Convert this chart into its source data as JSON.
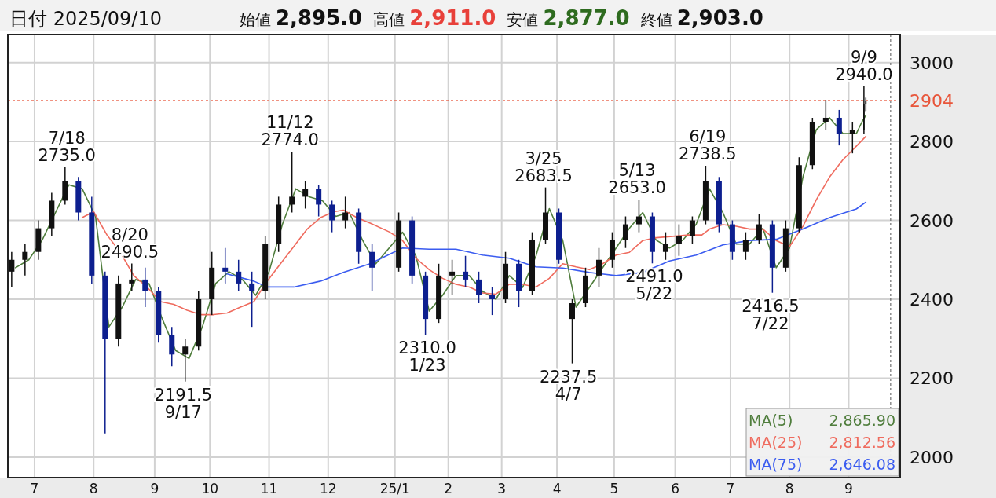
{
  "chart_data": {
    "type": "candlestick",
    "title": "日付 2025/09/10",
    "x": [
      "2024-06-19",
      "2024-06-26",
      "2024-07-03",
      "2024-07-10",
      "2024-07-17",
      "2024-07-24",
      "2024-07-31",
      "2024-08-07",
      "2024-08-14",
      "2024-08-21",
      "2024-08-28",
      "2024-09-04",
      "2024-09-11",
      "2024-09-18",
      "2024-09-25",
      "2024-10-02",
      "2024-10-09",
      "2024-10-16",
      "2024-10-23",
      "2024-10-30",
      "2024-11-06",
      "2024-11-13",
      "2024-11-20",
      "2024-11-27",
      "2024-12-04",
      "2024-12-11",
      "2024-12-18",
      "2024-12-25",
      "2025-01-08",
      "2025-01-15",
      "2025-01-22",
      "2025-01-29",
      "2025-02-05",
      "2025-02-12",
      "2025-02-19",
      "2025-02-26",
      "2025-03-05",
      "2025-03-12",
      "2025-03-19",
      "2025-03-26",
      "2025-04-02",
      "2025-04-09",
      "2025-04-16",
      "2025-04-23",
      "2025-04-30",
      "2025-05-07",
      "2025-05-14",
      "2025-05-21",
      "2025-05-28",
      "2025-06-04",
      "2025-06-11",
      "2025-06-18",
      "2025-06-25",
      "2025-07-02",
      "2025-07-09",
      "2025-07-16",
      "2025-07-23",
      "2025-07-30",
      "2025-08-06",
      "2025-08-13",
      "2025-08-20",
      "2025-08-27",
      "2025-09-03",
      "2025-09-09",
      "2025-09-10"
    ],
    "ohlc": [
      [
        2470,
        2520,
        2430,
        2500
      ],
      [
        2500,
        2540,
        2460,
        2520
      ],
      [
        2520,
        2600,
        2500,
        2580
      ],
      [
        2580,
        2670,
        2560,
        2650
      ],
      [
        2650,
        2735,
        2640,
        2700
      ],
      [
        2700,
        2710,
        2600,
        2620
      ],
      [
        2620,
        2660,
        2440,
        2460
      ],
      [
        2460,
        2470,
        2060,
        2300
      ],
      [
        2300,
        2460,
        2280,
        2440
      ],
      [
        2440,
        2490.5,
        2420,
        2450
      ],
      [
        2450,
        2480,
        2380,
        2420
      ],
      [
        2420,
        2430,
        2290,
        2310
      ],
      [
        2310,
        2330,
        2230,
        2260
      ],
      [
        2260,
        2300,
        2191.5,
        2280
      ],
      [
        2280,
        2420,
        2270,
        2400
      ],
      [
        2400,
        2520,
        2360,
        2480
      ],
      [
        2480,
        2530,
        2440,
        2470
      ],
      [
        2470,
        2500,
        2420,
        2440
      ],
      [
        2440,
        2470,
        2330,
        2420
      ],
      [
        2420,
        2560,
        2400,
        2540
      ],
      [
        2540,
        2660,
        2520,
        2640
      ],
      [
        2640,
        2774,
        2620,
        2660
      ],
      [
        2660,
        2700,
        2630,
        2680
      ],
      [
        2680,
        2690,
        2610,
        2640
      ],
      [
        2640,
        2650,
        2570,
        2600
      ],
      [
        2600,
        2660,
        2580,
        2620
      ],
      [
        2620,
        2630,
        2490,
        2520
      ],
      [
        2520,
        2540,
        2420,
        2480
      ],
      [
        2480,
        2620,
        2470,
        2600
      ],
      [
        2600,
        2610,
        2440,
        2460
      ],
      [
        2460,
        2470,
        2310,
        2350
      ],
      [
        2350,
        2490,
        2340,
        2460
      ],
      [
        2460,
        2500,
        2410,
        2470
      ],
      [
        2470,
        2510,
        2430,
        2450
      ],
      [
        2450,
        2470,
        2390,
        2410
      ],
      [
        2410,
        2430,
        2360,
        2400
      ],
      [
        2400,
        2520,
        2390,
        2490
      ],
      [
        2490,
        2500,
        2380,
        2420
      ],
      [
        2420,
        2570,
        2410,
        2550
      ],
      [
        2550,
        2683.5,
        2540,
        2620
      ],
      [
        2620,
        2630,
        2490,
        2500
      ],
      [
        2350,
        2400,
        2237.5,
        2390
      ],
      [
        2390,
        2480,
        2380,
        2460
      ],
      [
        2460,
        2530,
        2430,
        2500
      ],
      [
        2500,
        2570,
        2480,
        2550
      ],
      [
        2550,
        2610,
        2530,
        2590
      ],
      [
        2590,
        2653,
        2570,
        2610
      ],
      [
        2610,
        2620,
        2491,
        2520
      ],
      [
        2520,
        2570,
        2500,
        2540
      ],
      [
        2540,
        2590,
        2510,
        2560
      ],
      [
        2560,
        2610,
        2540,
        2600
      ],
      [
        2600,
        2738.5,
        2590,
        2700
      ],
      [
        2700,
        2710,
        2570,
        2590
      ],
      [
        2590,
        2600,
        2500,
        2520
      ],
      [
        2520,
        2570,
        2500,
        2550
      ],
      [
        2550,
        2615,
        2540,
        2590
      ],
      [
        2590,
        2600,
        2416.5,
        2480
      ],
      [
        2480,
        2600,
        2470,
        2580
      ],
      [
        2580,
        2760,
        2570,
        2740
      ],
      [
        2740,
        2860,
        2730,
        2850
      ],
      [
        2850,
        2905,
        2830,
        2860
      ],
      [
        2860,
        2880,
        2790,
        2820
      ],
      [
        2820,
        2850,
        2770,
        2830
      ],
      [
        2830,
        2940,
        2820,
        2895
      ],
      [
        2895,
        2911,
        2877,
        2903
      ]
    ],
    "series": [
      {
        "name": "MA(5)",
        "type": "line",
        "color": "#4f7d3c",
        "x": [
          "2024-06-21",
          "2024-06-28",
          "2024-07-05",
          "2024-07-12",
          "2024-07-19",
          "2024-07-26",
          "2024-08-02",
          "2024-08-09",
          "2024-08-16",
          "2024-08-23",
          "2024-08-30",
          "2024-09-06",
          "2024-09-13",
          "2024-09-20",
          "2024-09-27",
          "2024-10-04",
          "2024-10-11",
          "2024-10-18",
          "2024-10-25",
          "2024-11-01",
          "2024-11-08",
          "2024-11-15",
          "2024-11-22",
          "2024-11-29",
          "2024-12-06",
          "2024-12-13",
          "2024-12-20",
          "2024-12-27",
          "2025-01-10",
          "2025-01-17",
          "2025-01-24",
          "2025-01-31",
          "2025-02-07",
          "2025-02-14",
          "2025-02-21",
          "2025-02-28",
          "2025-03-07",
          "2025-03-14",
          "2025-03-21",
          "2025-03-28",
          "2025-04-04",
          "2025-04-11",
          "2025-04-18",
          "2025-04-25",
          "2025-05-02",
          "2025-05-09",
          "2025-05-16",
          "2025-05-23",
          "2025-05-30",
          "2025-06-06",
          "2025-06-13",
          "2025-06-20",
          "2025-06-27",
          "2025-07-04",
          "2025-07-11",
          "2025-07-18",
          "2025-07-25",
          "2025-08-01",
          "2025-08-08",
          "2025-08-15",
          "2025-08-22",
          "2025-08-29",
          "2025-09-05",
          "2025-09-08",
          "2025-09-10"
        ],
        "values": [
          2480,
          2500,
          2550,
          2620,
          2690,
          2680,
          2610,
          2330,
          2380,
          2450,
          2440,
          2350,
          2270,
          2250,
          2330,
          2440,
          2470,
          2450,
          2410,
          2470,
          2590,
          2680,
          2660,
          2650,
          2610,
          2620,
          2550,
          2490,
          2570,
          2510,
          2370,
          2410,
          2460,
          2460,
          2420,
          2400,
          2460,
          2430,
          2510,
          2630,
          2550,
          2380,
          2430,
          2480,
          2530,
          2580,
          2620,
          2550,
          2530,
          2550,
          2590,
          2680,
          2620,
          2540,
          2540,
          2580,
          2480,
          2530,
          2710,
          2830,
          2860,
          2820,
          2820,
          2850,
          2866
        ]
      },
      {
        "name": "MA(25)",
        "type": "line",
        "color": "#ef6b5e",
        "x": [
          "2024-07-26",
          "2024-08-01",
          "2024-08-08",
          "2024-08-15",
          "2024-08-22",
          "2024-08-29",
          "2024-09-05",
          "2024-09-12",
          "2024-09-19",
          "2024-09-26",
          "2024-10-03",
          "2024-10-10",
          "2024-10-17",
          "2024-10-24",
          "2024-10-31",
          "2024-11-07",
          "2024-11-14",
          "2024-11-21",
          "2024-11-28",
          "2024-12-05",
          "2024-12-10",
          "2024-12-17",
          "2024-12-24",
          "2025-01-03",
          "2025-01-10",
          "2025-01-17",
          "2025-01-24",
          "2025-01-31",
          "2025-02-07",
          "2025-02-14",
          "2025-02-21",
          "2025-02-28",
          "2025-03-07",
          "2025-03-14",
          "2025-03-21",
          "2025-03-28",
          "2025-04-04",
          "2025-04-11",
          "2025-04-18",
          "2025-04-25",
          "2025-05-02",
          "2025-05-09",
          "2025-05-16",
          "2025-05-23",
          "2025-06-02",
          "2025-06-09",
          "2025-06-16",
          "2025-06-20",
          "2025-06-27",
          "2025-07-04",
          "2025-07-11",
          "2025-07-18",
          "2025-07-25",
          "2025-08-01",
          "2025-08-08",
          "2025-08-15",
          "2025-08-22",
          "2025-08-29",
          "2025-09-05",
          "2025-09-10"
        ],
        "values": [
          2607,
          2622,
          2563,
          2519,
          2460,
          2431,
          2394,
          2387,
          2372,
          2361,
          2361,
          2365,
          2380,
          2394,
          2446,
          2490,
          2534,
          2578,
          2607,
          2622,
          2626,
          2607,
          2593,
          2571,
          2549,
          2504,
          2475,
          2453,
          2438,
          2431,
          2416,
          2413,
          2438,
          2438,
          2431,
          2453,
          2490,
          2482,
          2475,
          2490,
          2512,
          2519,
          2549,
          2556,
          2560,
          2563,
          2563,
          2578,
          2589,
          2585,
          2578,
          2578,
          2549,
          2534,
          2585,
          2652,
          2710,
          2754,
          2788,
          2813
        ]
      },
      {
        "name": "MA(75)",
        "type": "line",
        "color": "#3b5cf0",
        "x": [
          "2024-10-10",
          "2024-10-24",
          "2024-10-31",
          "2024-11-14",
          "2024-11-28",
          "2024-12-10",
          "2024-12-24",
          "2025-01-10",
          "2025-01-24",
          "2025-02-07",
          "2025-02-21",
          "2025-03-07",
          "2025-03-21",
          "2025-04-04",
          "2025-04-18",
          "2025-05-02",
          "2025-05-16",
          "2025-05-30",
          "2025-06-13",
          "2025-06-27",
          "2025-07-11",
          "2025-07-25",
          "2025-08-08",
          "2025-08-22",
          "2025-09-05",
          "2025-09-10"
        ],
        "values": [
          2464,
          2446,
          2431,
          2431,
          2446,
          2468,
          2490,
          2530,
          2527,
          2527,
          2512,
          2504,
          2482,
          2479,
          2468,
          2460,
          2468,
          2497,
          2512,
          2538,
          2549,
          2552,
          2578,
          2607,
          2629,
          2646
        ]
      }
    ],
    "xlim": [
      "2024-06-17",
      "2025-09-28"
    ],
    "xticks": [
      {
        "value": "2024-07-01",
        "label": "7"
      },
      {
        "value": "2024-08-01",
        "label": "8"
      },
      {
        "value": "2024-09-02",
        "label": "9"
      },
      {
        "value": "2024-10-01",
        "label": "10"
      },
      {
        "value": "2024-11-01",
        "label": "11"
      },
      {
        "value": "2024-12-02",
        "label": "12"
      },
      {
        "value": "2025-01-06",
        "label": "25/1"
      },
      {
        "value": "2025-02-03",
        "label": "2"
      },
      {
        "value": "2025-03-03",
        "label": "3"
      },
      {
        "value": "2025-04-01",
        "label": "4"
      },
      {
        "value": "2025-05-01",
        "label": "5"
      },
      {
        "value": "2025-06-02",
        "label": "6"
      },
      {
        "value": "2025-07-01",
        "label": "7"
      },
      {
        "value": "2025-08-01",
        "label": "8"
      },
      {
        "value": "2025-09-01",
        "label": "9"
      }
    ],
    "ylim": [
      1948,
      3071
    ],
    "yticks": [
      2000,
      2200,
      2400,
      2600,
      2800,
      3000
    ],
    "grid": true,
    "legend": "bottom right",
    "ref_lines": [
      {
        "axis": "y",
        "value": 2904,
        "label": "2904",
        "color": "#e8553a",
        "line_style": "dashed"
      },
      {
        "axis": "x",
        "value": "2025-09-23",
        "color": "#555555",
        "line_style": "dashed"
      }
    ],
    "annotations": [
      "始値",
      "2,895.0",
      "高値",
      "2,911.0",
      "安値",
      "2,877.0",
      "終値",
      "2,903.0",
      "2,865.90",
      "2,812.56",
      "2,646.08",
      {
        "text": "7/18\n2735.0",
        "x": "2024-07-18",
        "y": 2735.0
      },
      {
        "text": "8/20\n2490.5",
        "x": "2024-08-20",
        "y": 2490.5
      },
      {
        "text": "2191.5\n9/17",
        "x": "2024-09-17",
        "y": 2191.5
      },
      {
        "text": "11/12\n2774.0",
        "x": "2024-11-12",
        "y": 2774.0
      },
      {
        "text": "2310.0\n1/23",
        "x": "2025-01-23",
        "y": 2310.0
      },
      {
        "text": "3/25\n2683.5",
        "x": "2025-03-25",
        "y": 2683.5
      },
      {
        "text": "2237.5\n4/7",
        "x": "2025-04-07",
        "y": 2237.5
      },
      {
        "text": "5/13\n2653.0",
        "x": "2025-05-13",
        "y": 2653.0
      },
      {
        "text": "2491.0\n5/22",
        "x": "2025-05-22",
        "y": 2491.0
      },
      {
        "text": "6/19\n2738.5",
        "x": "2025-06-19",
        "y": 2738.5
      },
      {
        "text": "2416.5\n7/22",
        "x": "2025-07-22",
        "y": 2416.5
      },
      {
        "text": "9/9\n2940.0",
        "x": "2025-09-09",
        "y": 2940.0
      }
    ]
  }
}
